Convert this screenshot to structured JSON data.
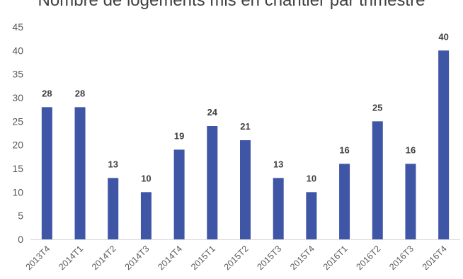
{
  "chart_data": {
    "type": "bar",
    "title": "Nombre de logements mis en chantier par trimestre",
    "xlabel": "",
    "ylabel": "",
    "categories": [
      "2013T4",
      "2014T1",
      "2014T2",
      "2014T3",
      "2014T4",
      "2015T1",
      "2015T2",
      "2015T3",
      "2015T4",
      "2016T1",
      "2016T2",
      "2016T3",
      "2016T4"
    ],
    "values": [
      28,
      28,
      13,
      10,
      19,
      24,
      21,
      13,
      10,
      16,
      25,
      16,
      40
    ],
    "ylim": [
      0,
      45
    ],
    "yticks": [
      0,
      5,
      10,
      15,
      20,
      25,
      30,
      35,
      40,
      45
    ],
    "grid": false,
    "legend": "none",
    "bar_color": "#3F55A5",
    "data_labels": true
  }
}
